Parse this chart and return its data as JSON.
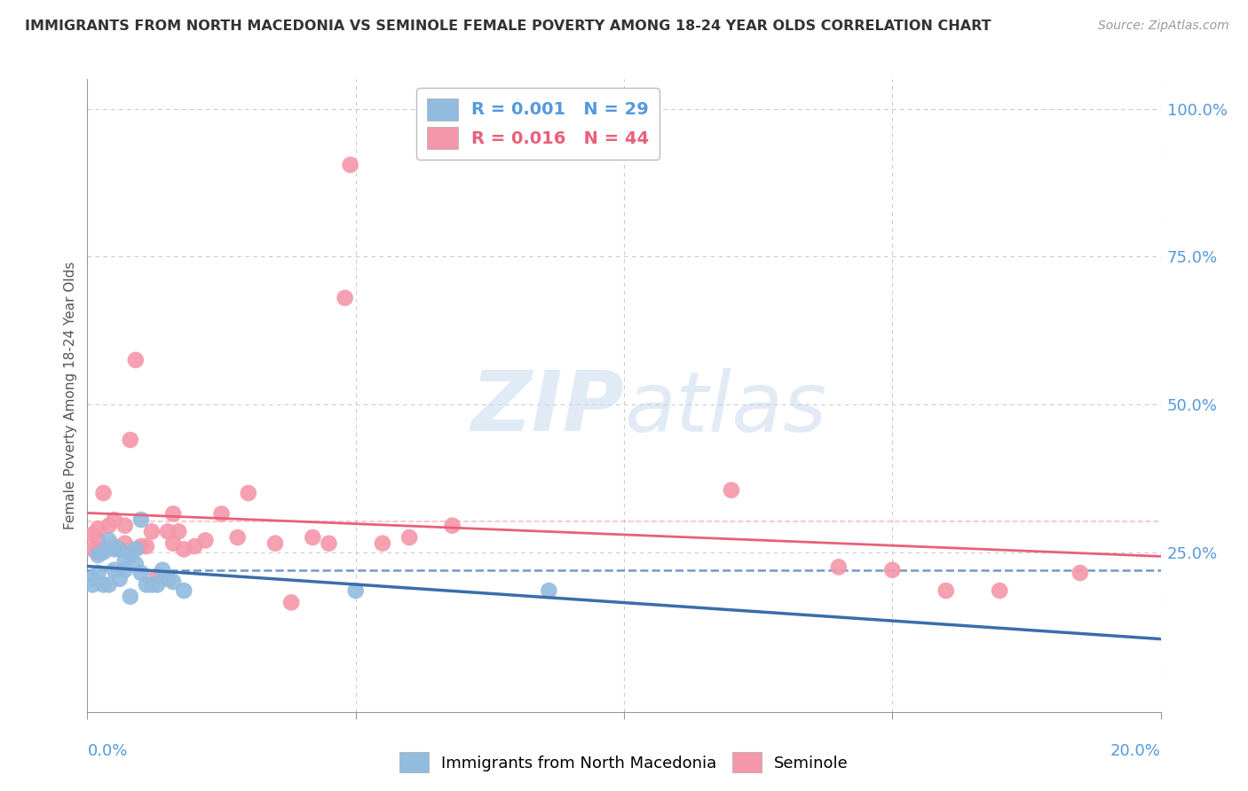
{
  "title": "IMMIGRANTS FROM NORTH MACEDONIA VS SEMINOLE FEMALE POVERTY AMONG 18-24 YEAR OLDS CORRELATION CHART",
  "source": "Source: ZipAtlas.com",
  "ylabel": "Female Poverty Among 18-24 Year Olds",
  "ytick_labels": [
    "100.0%",
    "75.0%",
    "50.0%",
    "25.0%"
  ],
  "ytick_values": [
    1.0,
    0.75,
    0.5,
    0.25
  ],
  "xlim": [
    0.0,
    0.2
  ],
  "ylim": [
    -0.02,
    1.05
  ],
  "watermark_zip": "ZIP",
  "watermark_atlas": "atlas",
  "legend_label1": "R = 0.001   N = 29",
  "legend_label2": "R = 0.016   N = 44",
  "series1_color": "#92bbde",
  "series2_color": "#f497aa",
  "trendline1_color": "#3a6eaa",
  "trendline2_color": "#e8607a",
  "grid_color": "#cccccc",
  "axis_color": "#999999",
  "right_tick_color": "#5599dd",
  "title_color": "#333333",
  "scatter1_x": [
    0.001,
    0.001,
    0.002,
    0.002,
    0.003,
    0.003,
    0.004,
    0.004,
    0.005,
    0.005,
    0.006,
    0.006,
    0.007,
    0.007,
    0.008,
    0.008,
    0.009,
    0.009,
    0.01,
    0.01,
    0.011,
    0.012,
    0.013,
    0.014,
    0.015,
    0.016,
    0.018,
    0.05,
    0.086
  ],
  "scatter1_y": [
    0.195,
    0.205,
    0.215,
    0.245,
    0.195,
    0.25,
    0.195,
    0.27,
    0.22,
    0.255,
    0.205,
    0.255,
    0.235,
    0.22,
    0.175,
    0.245,
    0.23,
    0.255,
    0.215,
    0.305,
    0.195,
    0.195,
    0.195,
    0.22,
    0.205,
    0.2,
    0.185,
    0.185,
    0.185
  ],
  "scatter2_x": [
    0.001,
    0.001,
    0.002,
    0.002,
    0.002,
    0.003,
    0.003,
    0.004,
    0.005,
    0.005,
    0.006,
    0.007,
    0.007,
    0.008,
    0.009,
    0.01,
    0.011,
    0.012,
    0.013,
    0.015,
    0.016,
    0.016,
    0.017,
    0.018,
    0.02,
    0.022,
    0.025,
    0.028,
    0.03,
    0.035,
    0.038,
    0.042,
    0.045,
    0.048,
    0.049,
    0.055,
    0.06,
    0.068,
    0.12,
    0.14,
    0.15,
    0.16,
    0.17,
    0.185
  ],
  "scatter2_y": [
    0.255,
    0.28,
    0.25,
    0.29,
    0.27,
    0.255,
    0.35,
    0.295,
    0.26,
    0.305,
    0.255,
    0.265,
    0.295,
    0.44,
    0.575,
    0.26,
    0.26,
    0.285,
    0.21,
    0.285,
    0.265,
    0.315,
    0.285,
    0.255,
    0.26,
    0.27,
    0.315,
    0.275,
    0.35,
    0.265,
    0.165,
    0.275,
    0.265,
    0.68,
    0.905,
    0.265,
    0.275,
    0.295,
    0.355,
    0.225,
    0.22,
    0.185,
    0.185,
    0.215
  ]
}
